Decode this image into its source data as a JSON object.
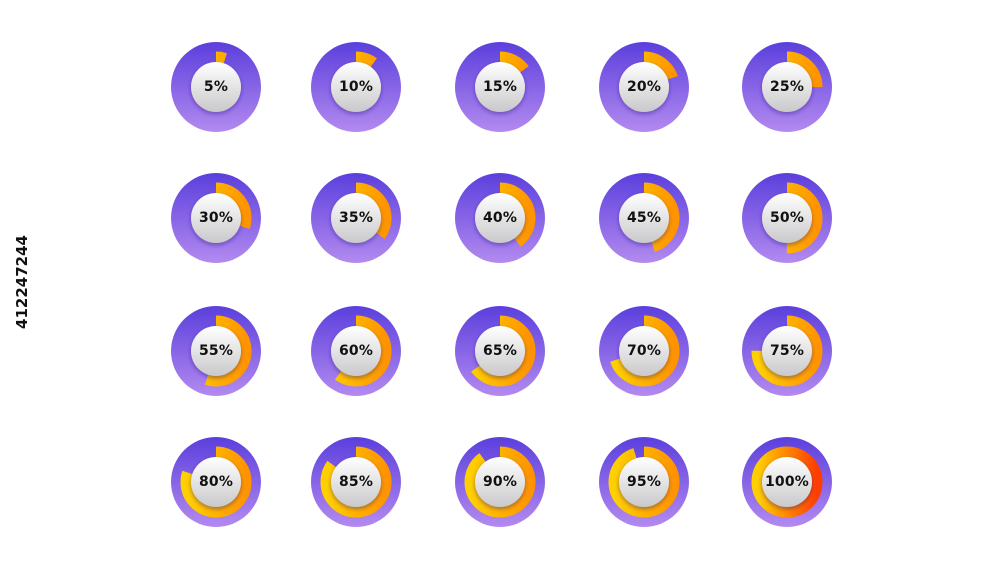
{
  "stock_id": "412247244",
  "colors": {
    "ring_top": "#5b3fdc",
    "ring_bottom": "#b38af0",
    "progress_start": "#ffd000",
    "progress_end": "#ff9400",
    "progress_full_end": "#ff3d00",
    "inner_top": "#ffffff",
    "inner_bottom": "#c9c9cb",
    "label": "#111111"
  },
  "gauges": [
    {
      "label": "5%",
      "value": 0.05
    },
    {
      "label": "10%",
      "value": 0.1
    },
    {
      "label": "15%",
      "value": 0.15
    },
    {
      "label": "20%",
      "value": 0.2
    },
    {
      "label": "25%",
      "value": 0.25
    },
    {
      "label": "30%",
      "value": 0.3
    },
    {
      "label": "35%",
      "value": 0.35
    },
    {
      "label": "40%",
      "value": 0.4
    },
    {
      "label": "45%",
      "value": 0.45
    },
    {
      "label": "50%",
      "value": 0.5
    },
    {
      "label": "55%",
      "value": 0.55
    },
    {
      "label": "60%",
      "value": 0.6
    },
    {
      "label": "65%",
      "value": 0.65
    },
    {
      "label": "70%",
      "value": 0.7
    },
    {
      "label": "75%",
      "value": 0.75
    },
    {
      "label": "80%",
      "value": 0.8
    },
    {
      "label": "85%",
      "value": 0.85
    },
    {
      "label": "90%",
      "value": 0.9
    },
    {
      "label": "95%",
      "value": 0.95
    },
    {
      "label": "100%",
      "value": 1.0
    }
  ]
}
